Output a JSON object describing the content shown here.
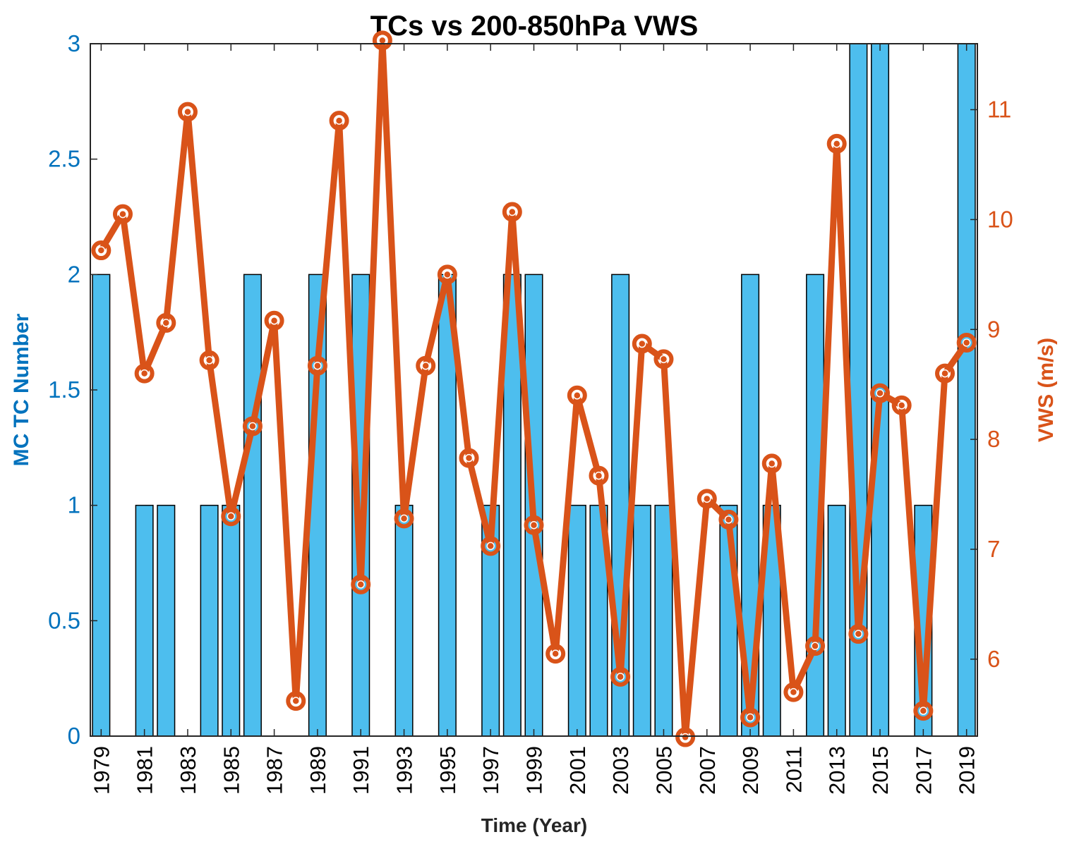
{
  "chart_data": {
    "type": "bar",
    "title": "TCs vs 200-850hPa VWS",
    "xlabel": "Time (Year)",
    "ylabel_left": "MC TC Number",
    "ylabel_right": "VWS (m/s)",
    "ylim_left": [
      0,
      3
    ],
    "ylim_right": [
      5.3,
      11.6
    ],
    "left_ticks": [
      "0",
      "0.5",
      "1",
      "1.5",
      "2",
      "2.5",
      "3"
    ],
    "left_tick_values": [
      0,
      0.5,
      1,
      1.5,
      2,
      2.5,
      3
    ],
    "right_ticks": [
      "6",
      "7",
      "8",
      "9",
      "10",
      "11"
    ],
    "right_tick_values": [
      6,
      7,
      8,
      9,
      10,
      11
    ],
    "x_tick_labels": [
      "1979",
      "1981",
      "1983",
      "1985",
      "1987",
      "1989",
      "1991",
      "1993",
      "1995",
      "1997",
      "1999",
      "2001",
      "2003",
      "2005",
      "2007",
      "2009",
      "2011",
      "2013",
      "2015",
      "2017",
      "2019"
    ],
    "categories": [
      1979,
      1980,
      1981,
      1982,
      1983,
      1984,
      1985,
      1986,
      1987,
      1988,
      1989,
      1990,
      1991,
      1992,
      1993,
      1994,
      1995,
      1996,
      1997,
      1998,
      1999,
      2000,
      2001,
      2002,
      2003,
      2004,
      2005,
      2006,
      2007,
      2008,
      2009,
      2010,
      2011,
      2012,
      2013,
      2014,
      2015,
      2016,
      2017,
      2018,
      2019
    ],
    "series": [
      {
        "name": "MC TC Number",
        "type": "bar",
        "axis": "left",
        "color": "#4DBEEE",
        "values": [
          2,
          0,
          1,
          1,
          0,
          1,
          1,
          2,
          0,
          0,
          2,
          0,
          2,
          0,
          1,
          0,
          2,
          0,
          1,
          2,
          2,
          0,
          1,
          1,
          2,
          1,
          1,
          0,
          0,
          1,
          2,
          1,
          0,
          2,
          1,
          3,
          3,
          0,
          1,
          0,
          3
        ]
      },
      {
        "name": "VWS",
        "type": "line",
        "axis": "right",
        "color": "#D95319",
        "values": [
          9.72,
          10.05,
          8.6,
          9.06,
          10.98,
          8.72,
          7.3,
          8.12,
          9.08,
          5.62,
          8.67,
          10.9,
          6.68,
          11.63,
          7.28,
          8.67,
          9.5,
          7.83,
          7.03,
          10.07,
          7.22,
          6.05,
          8.4,
          7.67,
          5.84,
          8.87,
          8.73,
          5.29,
          7.46,
          7.27,
          5.47,
          7.78,
          5.7,
          6.12,
          10.69,
          6.23,
          8.42,
          8.31,
          5.53,
          8.6,
          8.88
        ]
      }
    ]
  }
}
